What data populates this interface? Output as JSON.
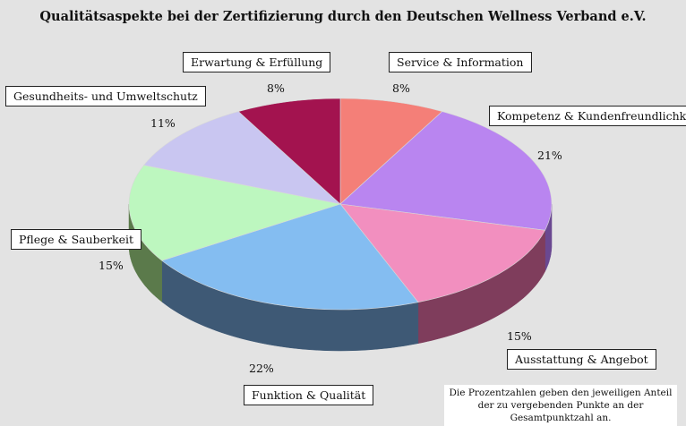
{
  "chart_data": {
    "type": "pie",
    "title": "Qualitätsaspekte bei der Zertifizierung durch den Deutschen Wellness Verband e.V.",
    "slices": [
      {
        "label": "Service & Information",
        "value": 8,
        "pct_text": "8%",
        "color": "#f47f78",
        "side": "#9e4f4a"
      },
      {
        "label": "Kompetenz & Kundenfreundlichkeit",
        "value": 21,
        "pct_text": "21%",
        "color": "#b985f0",
        "side": "#6a4891"
      },
      {
        "label": "Ausstattung & Angebot",
        "value": 15,
        "pct_text": "15%",
        "color": "#f28fbf",
        "side": "#7f3d5c"
      },
      {
        "label": "Funktion & Qualität",
        "value": 22,
        "pct_text": "22%",
        "color": "#84bdf1",
        "side": "#3e5975"
      },
      {
        "label": "Pflege & Sauberkeit",
        "value": 15,
        "pct_text": "15%",
        "color": "#bdf7bf",
        "side": "#5b7a4b"
      },
      {
        "label": "Gesundheits- und Umweltschutz",
        "value": 11,
        "pct_text": "11%",
        "color": "#c9c6f1",
        "side": "#74729a"
      },
      {
        "label": "Erwartung & Erfüllung",
        "value": 8,
        "pct_text": "8%",
        "color": "#a3134f",
        "side": "#6a0c33"
      }
    ]
  },
  "note": "Die Prozentzahlen geben den jeweiligen Anteil der zu vergebenden Punkte an der Gesamtpunktzahl an."
}
